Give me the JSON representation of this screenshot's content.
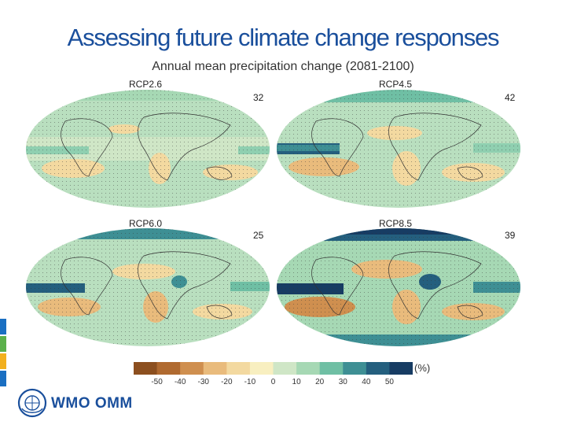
{
  "slide": {
    "title": "Assessing future climate change responses"
  },
  "figure": {
    "title": "Annual mean precipitation change (2081-2100)",
    "panels": [
      {
        "scenario": "RCP2.6",
        "model_count": "32"
      },
      {
        "scenario": "RCP4.5",
        "model_count": "42"
      },
      {
        "scenario": "RCP6.0",
        "model_count": "25"
      },
      {
        "scenario": "RCP8.5",
        "model_count": "39"
      }
    ],
    "colorbar": {
      "ticks": [
        "-50",
        "-40",
        "-30",
        "-20",
        "-10",
        "0",
        "10",
        "20",
        "30",
        "40",
        "50"
      ],
      "unit": "(%)",
      "colors": [
        "#8c4f1f",
        "#b06a30",
        "#cf8f4f",
        "#e9bb7c",
        "#f3d9a0",
        "#f8efc0",
        "#cfe6c6",
        "#a6d8b4",
        "#6fbfa4",
        "#3e8f94",
        "#245f7e",
        "#173c63"
      ]
    }
  },
  "footer": {
    "logo_text": "WMO OMM",
    "strip_colors": [
      "#1a6fc2",
      "#5bb04b",
      "#f2b01e",
      "#1a6fc2"
    ]
  }
}
